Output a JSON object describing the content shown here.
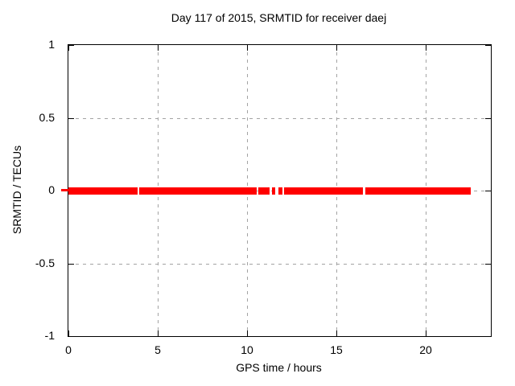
{
  "title": "Day 117 of 2015, SRMTID for receiver daej",
  "colors": {
    "series": "#ff0000",
    "grid": "#a3a3a3",
    "border": "#000000",
    "background": "#ffffff",
    "text": "#000000"
  },
  "chart_data": {
    "type": "line",
    "title": "Day 117 of 2015, SRMTID for receiver daej",
    "xlabel": "GPS time / hours",
    "ylabel": "SRMTID / TECUs",
    "xlim": [
      0,
      23.65
    ],
    "ylim": [
      -1,
      1
    ],
    "grid": true,
    "legend": "none",
    "x_ticks": [
      {
        "value": 0,
        "label": "0"
      },
      {
        "value": 5,
        "label": "5"
      },
      {
        "value": 10,
        "label": "10"
      },
      {
        "value": 15,
        "label": "15"
      },
      {
        "value": 20,
        "label": "20"
      }
    ],
    "y_ticks": [
      {
        "value": 1,
        "label": "1"
      },
      {
        "value": 0.5,
        "label": "0.5"
      },
      {
        "value": 0,
        "label": "0"
      },
      {
        "value": -0.5,
        "label": "-0.5"
      },
      {
        "value": -1,
        "label": "-1"
      }
    ],
    "series": [
      {
        "name": "SRMTID",
        "color": "#ff0000",
        "y_value": 0,
        "segments_hours": [
          [
            0.0,
            3.87
          ],
          [
            3.96,
            10.54
          ],
          [
            10.63,
            11.26
          ],
          [
            11.4,
            11.58
          ],
          [
            11.76,
            11.98
          ],
          [
            12.07,
            16.49
          ],
          [
            16.62,
            22.52
          ]
        ]
      }
    ]
  }
}
